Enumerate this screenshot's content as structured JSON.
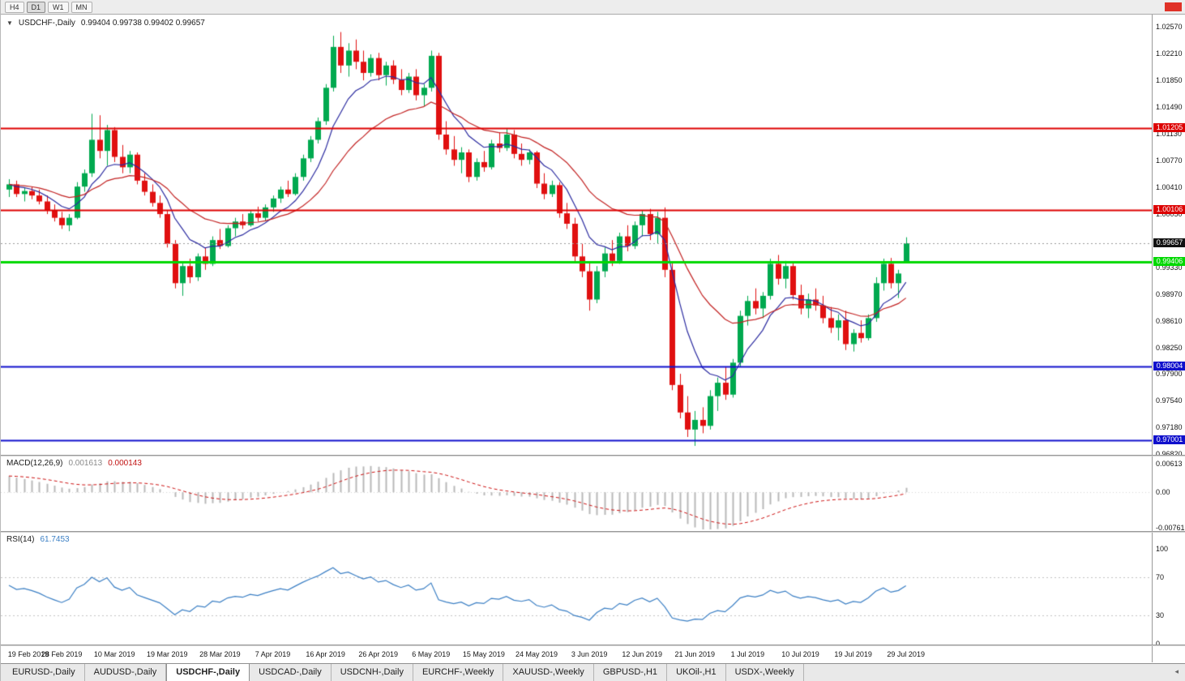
{
  "toolbar": {
    "timeframes": [
      {
        "label": "H4",
        "active": false
      },
      {
        "label": "D1",
        "active": true
      },
      {
        "label": "W1",
        "active": false
      },
      {
        "label": "MN",
        "active": false
      }
    ]
  },
  "header": {
    "dropdown_icon": "▼",
    "symbol": "USDCHF-,Daily",
    "ohlc_text": "0.99404 0.99738 0.99402 0.99657"
  },
  "tab_bar": {
    "scroll_icon": "◂",
    "tabs": [
      {
        "label": "EURUSD-,Daily",
        "active": false
      },
      {
        "label": "AUDUSD-,Daily",
        "active": false
      },
      {
        "label": "USDCHF-,Daily",
        "active": true
      },
      {
        "label": "USDCAD-,Daily",
        "active": false
      },
      {
        "label": "USDCNH-,Daily",
        "active": false
      },
      {
        "label": "EURCHF-,Weekly",
        "active": false
      },
      {
        "label": "XAUUSD-,Weekly",
        "active": false
      },
      {
        "label": "GBPUSD-,H1",
        "active": false
      },
      {
        "label": "UKOil-,H1",
        "active": false
      },
      {
        "label": "USDX-,Weekly",
        "active": false
      }
    ]
  },
  "chart_data": {
    "type": "candlestick",
    "symbol": "USDCHF",
    "timeframe": "Daily",
    "current_bar": {
      "open": 0.99404,
      "high": 0.99738,
      "low": 0.99402,
      "close": 0.99657
    },
    "colors": {
      "up": "#00a94f",
      "down": "#e01010",
      "macd_hist": "#b8b8b8",
      "macd_signal": "#cc1111",
      "rsi_line": "#3b7fc4",
      "grid_dotted": "#c4c4c4"
    },
    "y_axis": {
      "range": [
        0.9681,
        1.02735
      ],
      "ticks": [
        "1.02570",
        "1.02210",
        "1.01850",
        "1.01490",
        "1.01130",
        "1.00770",
        "1.00410",
        "1.00050",
        "0.99330",
        "0.98970",
        "0.98610",
        "0.98250",
        "0.97900",
        "0.97540",
        "0.97180",
        "0.96820"
      ]
    },
    "x_axis": {
      "label_indices": [
        0,
        7,
        14,
        21,
        28,
        35,
        42,
        49,
        56,
        63,
        70,
        77,
        84,
        91,
        98,
        105,
        112,
        119
      ],
      "labels": [
        "19 Feb 2019",
        "28 Feb 2019",
        "10 Mar 2019",
        "19 Mar 2019",
        "28 Mar 2019",
        "7 Apr 2019",
        "16 Apr 2019",
        "26 Apr 2019",
        "6 May 2019",
        "15 May 2019",
        "24 May 2019",
        "3 Jun 2019",
        "12 Jun 2019",
        "21 Jun 2019",
        "1 Jul 2019",
        "10 Jul 2019",
        "19 Jul 2019",
        "29 Jul 2019"
      ]
    },
    "price_lines": [
      {
        "value": 1.01205,
        "label": "1.01205",
        "color": "#dd0000",
        "width": 2
      },
      {
        "value": 1.00106,
        "label": "1.00106",
        "color": "#dd0000",
        "width": 2
      },
      {
        "value": 0.99406,
        "label": "0.99406",
        "color": "#00d800",
        "width": 3
      },
      {
        "value": 0.98004,
        "label": "0.98004",
        "color": "#1010cc",
        "width": 2
      },
      {
        "value": 0.97001,
        "label": "0.97001",
        "color": "#1010cc",
        "width": 2
      }
    ],
    "current_price_line": {
      "value": 0.99657,
      "label": "0.99657",
      "line_color": "#999999",
      "badge_color": "#111111"
    },
    "overlays": [
      {
        "name": "ma-fast",
        "period": 8,
        "color": "#2b2ba0"
      },
      {
        "name": "ma-slow",
        "period": 21,
        "color": "#c22222"
      }
    ],
    "macd": {
      "label": "MACD(12,26,9)",
      "value_main": "0.001613",
      "value_signal": "0.000143",
      "fast_period": 12,
      "slow_period": 26,
      "signal_period": 9,
      "axis_ticks": [
        "0.00613",
        "0.00",
        "-0.00761"
      ]
    },
    "rsi": {
      "label": "RSI(14)",
      "value": "61.7453",
      "period": 14,
      "levels": [
        70,
        30
      ],
      "axis_ticks": [
        "100",
        "70",
        "30",
        "0"
      ]
    },
    "candles": [
      [
        1.0038,
        1.0052,
        1.0028,
        1.0045
      ],
      [
        1.0045,
        1.005,
        1.0028,
        1.0032
      ],
      [
        1.0032,
        1.004,
        1.0022,
        1.0036
      ],
      [
        1.0036,
        1.0042,
        1.0025,
        1.003
      ],
      [
        1.003,
        1.0038,
        1.0018,
        1.0022
      ],
      [
        1.0022,
        1.003,
        1.0005,
        1.001
      ],
      [
        1.001,
        1.0018,
        0.9995,
        1.0
      ],
      [
        1.0,
        1.0008,
        0.9985,
        0.999
      ],
      [
        0.999,
        1.0005,
        0.9982,
        1.0
      ],
      [
        1.0,
        1.0048,
        0.9998,
        1.0042
      ],
      [
        1.0042,
        1.0065,
        1.0035,
        1.006
      ],
      [
        1.006,
        1.014,
        1.0055,
        1.0105
      ],
      [
        1.0105,
        1.0138,
        1.008,
        1.009
      ],
      [
        1.009,
        1.0125,
        1.007,
        1.0118
      ],
      [
        1.0118,
        1.0122,
        1.0075,
        1.0082
      ],
      [
        1.0082,
        1.0098,
        1.006,
        1.0068
      ],
      [
        1.0068,
        1.009,
        1.006,
        1.0085
      ],
      [
        1.0085,
        1.0088,
        1.0045,
        1.005
      ],
      [
        1.005,
        1.006,
        1.003,
        1.0035
      ],
      [
        1.0035,
        1.0045,
        1.0015,
        1.002
      ],
      [
        1.002,
        1.003,
        1.0,
        1.0005
      ],
      [
        1.0005,
        1.001,
        0.996,
        0.9965
      ],
      [
        0.9965,
        0.997,
        0.9905,
        0.9912
      ],
      [
        0.9912,
        0.994,
        0.9895,
        0.9935
      ],
      [
        0.9935,
        0.9945,
        0.9912,
        0.992
      ],
      [
        0.992,
        0.9952,
        0.9915,
        0.9948
      ],
      [
        0.9948,
        0.996,
        0.993,
        0.9938
      ],
      [
        0.9938,
        0.9975,
        0.9935,
        0.997
      ],
      [
        0.997,
        0.9985,
        0.9958,
        0.9962
      ],
      [
        0.9962,
        0.999,
        0.996,
        0.9986
      ],
      [
        0.9986,
        1.0,
        0.9975,
        0.9995
      ],
      [
        0.9995,
        1.0005,
        0.9985,
        0.999
      ],
      [
        0.999,
        1.001,
        0.9988,
        1.0006
      ],
      [
        1.0006,
        1.0015,
        0.9995,
        1.0
      ],
      [
        1.0,
        1.0018,
        0.9996,
        1.0014
      ],
      [
        1.0014,
        1.003,
        1.0008,
        1.0026
      ],
      [
        1.0026,
        1.0042,
        1.002,
        1.0038
      ],
      [
        1.0038,
        1.005,
        1.0028,
        1.0032
      ],
      [
        1.0032,
        1.006,
        1.003,
        1.0055
      ],
      [
        1.0055,
        1.0085,
        1.005,
        1.008
      ],
      [
        1.008,
        1.011,
        1.0075,
        1.0105
      ],
      [
        1.0105,
        1.0135,
        1.01,
        1.013
      ],
      [
        1.013,
        1.018,
        1.0125,
        1.0175
      ],
      [
        1.0175,
        1.0245,
        1.017,
        1.023
      ],
      [
        1.023,
        1.025,
        1.0195,
        1.0205
      ],
      [
        1.0205,
        1.0235,
        1.019,
        1.0225
      ],
      [
        1.0225,
        1.024,
        1.02,
        1.021
      ],
      [
        1.021,
        1.0225,
        1.0185,
        1.0195
      ],
      [
        1.0195,
        1.022,
        1.019,
        1.0215
      ],
      [
        1.0215,
        1.0222,
        1.0185,
        1.0192
      ],
      [
        1.0192,
        1.021,
        1.0178,
        1.0205
      ],
      [
        1.0205,
        1.0212,
        1.018,
        1.0186
      ],
      [
        1.0186,
        1.02,
        1.0165,
        1.0172
      ],
      [
        1.0172,
        1.0195,
        1.0168,
        1.019
      ],
      [
        1.019,
        1.02,
        1.0158,
        1.0165
      ],
      [
        1.0165,
        1.018,
        1.015,
        1.0175
      ],
      [
        1.0175,
        1.0225,
        1.017,
        1.0218
      ],
      [
        1.0218,
        1.0222,
        1.0105,
        1.0112
      ],
      [
        1.0112,
        1.013,
        1.0085,
        1.0092
      ],
      [
        1.0092,
        1.011,
        1.007,
        1.0078
      ],
      [
        1.0078,
        1.0095,
        1.006,
        1.0088
      ],
      [
        1.0088,
        1.0092,
        1.0048,
        1.0055
      ],
      [
        1.0055,
        1.008,
        1.005,
        1.0075
      ],
      [
        1.0075,
        1.009,
        1.0062,
        1.0068
      ],
      [
        1.0068,
        1.0105,
        1.0065,
        1.01
      ],
      [
        1.01,
        1.0115,
        1.0088,
        1.0094
      ],
      [
        1.0094,
        1.012,
        1.009,
        1.0112
      ],
      [
        1.0112,
        1.0118,
        1.008,
        1.0086
      ],
      [
        1.0086,
        1.01,
        1.007,
        1.0078
      ],
      [
        1.0078,
        1.0092,
        1.0072,
        1.0088
      ],
      [
        1.0088,
        1.009,
        1.004,
        1.0046
      ],
      [
        1.0046,
        1.006,
        1.0025,
        1.0032
      ],
      [
        1.0032,
        1.005,
        1.0028,
        1.0044
      ],
      [
        1.0044,
        1.0048,
        1.0,
        1.0006
      ],
      [
        1.0006,
        1.002,
        0.9985,
        0.9992
      ],
      [
        0.9992,
        1.0,
        0.994,
        0.9948
      ],
      [
        0.9948,
        0.9965,
        0.992,
        0.9928
      ],
      [
        0.9928,
        0.994,
        0.9875,
        0.989
      ],
      [
        0.989,
        0.9935,
        0.9885,
        0.9928
      ],
      [
        0.9928,
        0.996,
        0.992,
        0.9952
      ],
      [
        0.9952,
        0.997,
        0.9935,
        0.9942
      ],
      [
        0.9942,
        0.998,
        0.9938,
        0.9975
      ],
      [
        0.9975,
        0.999,
        0.9955,
        0.9962
      ],
      [
        0.9962,
        0.9995,
        0.9958,
        0.999
      ],
      [
        0.999,
        1.001,
        0.9975,
        1.0005
      ],
      [
        1.0005,
        1.0012,
        0.997,
        0.9978
      ],
      [
        0.9978,
        1.0008,
        0.9965,
        1.0
      ],
      [
        1.0,
        1.0014,
        0.992,
        0.993
      ],
      [
        0.993,
        0.994,
        0.9768,
        0.9775
      ],
      [
        0.9775,
        0.979,
        0.973,
        0.9738
      ],
      [
        0.9738,
        0.976,
        0.9705,
        0.9715
      ],
      [
        0.9715,
        0.974,
        0.9693,
        0.9728
      ],
      [
        0.9728,
        0.9745,
        0.971,
        0.972
      ],
      [
        0.972,
        0.9768,
        0.9715,
        0.976
      ],
      [
        0.976,
        0.9785,
        0.974,
        0.9778
      ],
      [
        0.9778,
        0.98,
        0.9755,
        0.9762
      ],
      [
        0.9762,
        0.981,
        0.9758,
        0.9805
      ],
      [
        0.9805,
        0.9875,
        0.98,
        0.9868
      ],
      [
        0.9868,
        0.9895,
        0.9855,
        0.9888
      ],
      [
        0.9888,
        0.9905,
        0.987,
        0.9878
      ],
      [
        0.9878,
        0.99,
        0.9865,
        0.9895
      ],
      [
        0.9895,
        0.9945,
        0.989,
        0.9938
      ],
      [
        0.9938,
        0.995,
        0.991,
        0.9918
      ],
      [
        0.9918,
        0.9942,
        0.9905,
        0.9935
      ],
      [
        0.9935,
        0.994,
        0.989,
        0.9896
      ],
      [
        0.9896,
        0.991,
        0.987,
        0.9878
      ],
      [
        0.9878,
        0.9898,
        0.9865,
        0.989
      ],
      [
        0.989,
        0.9905,
        0.9875,
        0.9882
      ],
      [
        0.9882,
        0.9895,
        0.9858,
        0.9865
      ],
      [
        0.9865,
        0.988,
        0.9845,
        0.9852
      ],
      [
        0.9852,
        0.987,
        0.9835,
        0.9862
      ],
      [
        0.9862,
        0.9875,
        0.9822,
        0.983
      ],
      [
        0.983,
        0.985,
        0.982,
        0.9845
      ],
      [
        0.9845,
        0.9862,
        0.9832,
        0.9838
      ],
      [
        0.9838,
        0.987,
        0.9835,
        0.9865
      ],
      [
        0.9865,
        0.992,
        0.986,
        0.9912
      ],
      [
        0.9912,
        0.9945,
        0.9902,
        0.9938
      ],
      [
        0.9938,
        0.9946,
        0.9905,
        0.9912
      ],
      [
        0.9912,
        0.993,
        0.9892,
        0.9925
      ],
      [
        0.99404,
        0.99738,
        0.99402,
        0.99657
      ]
    ]
  }
}
